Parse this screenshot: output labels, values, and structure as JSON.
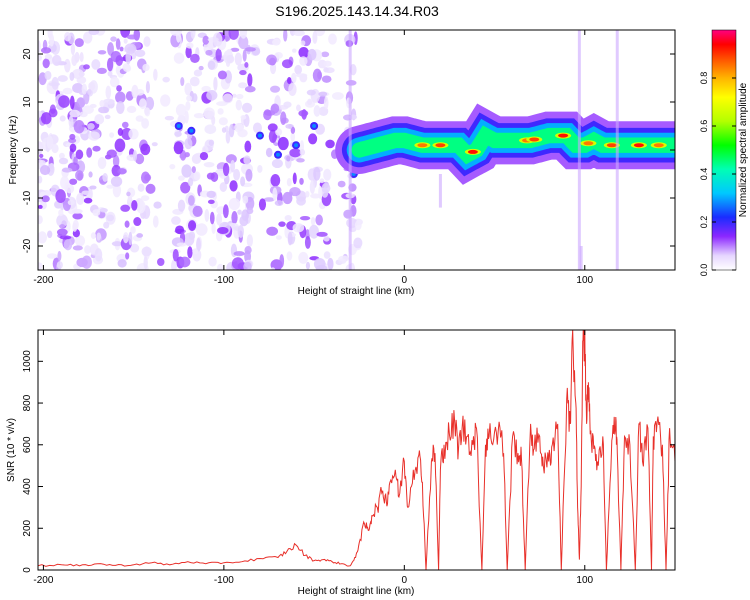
{
  "title": "S196.2025.143.14.34.R03",
  "chart_data": [
    {
      "type": "heatmap",
      "xlabel": "Height of straight line (km)",
      "ylabel": "Frequency (Hz)",
      "xlim": [
        -203,
        150
      ],
      "ylim": [
        -25,
        25
      ],
      "xticks": [
        -200,
        -100,
        0,
        100
      ],
      "yticks": [
        -20,
        -10,
        0,
        10,
        20
      ],
      "colorbar": {
        "label": "Normalized spectral amplitude",
        "range": [
          0,
          1
        ],
        "ticks": [
          0.0,
          0.2,
          0.4,
          0.6,
          0.8
        ],
        "colors": [
          "#ffffff",
          "#dcc8ff",
          "#8c28ff",
          "#1428ff",
          "#00c8ff",
          "#00ffb4",
          "#00ff00",
          "#b4ff00",
          "#ffff00",
          "#ffb400",
          "#ff5000",
          "#ff0000",
          "#ff0080"
        ]
      },
      "ridge": {
        "x": [
          -25,
          -15,
          -5,
          0,
          10,
          20,
          30,
          35,
          40,
          45,
          50,
          60,
          70,
          80,
          90,
          95,
          100,
          105,
          110,
          115,
          120,
          130,
          140,
          150
        ],
        "y": [
          0,
          1,
          2,
          2,
          1,
          1,
          1,
          -1,
          0,
          3,
          2,
          2,
          2,
          3,
          3,
          1,
          1,
          2,
          1,
          1,
          1,
          1,
          1,
          1
        ]
      },
      "noise_region": [
        -203,
        -25
      ]
    },
    {
      "type": "line",
      "xlabel": "Height of straight line (km)",
      "ylabel": "SNR (10 * v/v)",
      "xlim": [
        -203,
        150
      ],
      "ylim": [
        0,
        1150
      ],
      "xticks": [
        -200,
        -100,
        0,
        100
      ],
      "yticks": [
        0,
        200,
        400,
        600,
        800,
        1000
      ],
      "color": "#e8302a",
      "x": [
        -203,
        -190,
        -180,
        -170,
        -160,
        -150,
        -140,
        -130,
        -120,
        -110,
        -100,
        -90,
        -80,
        -70,
        -65,
        -60,
        -55,
        -50,
        -45,
        -40,
        -35,
        -30,
        -27,
        -25,
        -22,
        -20,
        -18,
        -15,
        -12,
        -10,
        -8,
        -5,
        -3,
        0,
        2,
        5,
        8,
        10,
        12,
        15,
        17,
        19,
        20,
        22,
        25,
        28,
        30,
        32,
        35,
        38,
        40,
        43,
        45,
        47,
        50,
        53,
        55,
        57,
        60,
        63,
        65,
        67,
        70,
        72,
        75,
        77,
        80,
        82,
        85,
        87,
        90,
        92,
        93,
        95,
        96,
        97,
        98,
        99,
        100,
        101,
        102,
        103,
        105,
        107,
        110,
        112,
        115,
        117,
        118,
        120,
        122,
        125,
        128,
        130,
        132,
        135,
        137,
        138,
        140,
        143,
        145,
        147,
        150
      ],
      "y": [
        20,
        25,
        20,
        30,
        22,
        25,
        35,
        25,
        40,
        30,
        35,
        40,
        55,
        60,
        90,
        120,
        70,
        45,
        50,
        40,
        30,
        20,
        60,
        130,
        220,
        190,
        260,
        300,
        380,
        330,
        420,
        480,
        350,
        520,
        300,
        480,
        550,
        420,
        0,
        520,
        560,
        0,
        480,
        600,
        650,
        700,
        580,
        680,
        640,
        600,
        680,
        0,
        600,
        640,
        660,
        680,
        560,
        0,
        640,
        560,
        520,
        0,
        700,
        580,
        640,
        500,
        520,
        600,
        700,
        0,
        820,
        700,
        1100,
        800,
        300,
        50,
        400,
        1100,
        1150,
        700,
        900,
        650,
        580,
        520,
        640,
        0,
        620,
        680,
        560,
        0,
        640,
        600,
        0,
        700,
        520,
        680,
        0,
        640,
        700,
        600,
        0,
        680,
        520
      ]
    }
  ]
}
